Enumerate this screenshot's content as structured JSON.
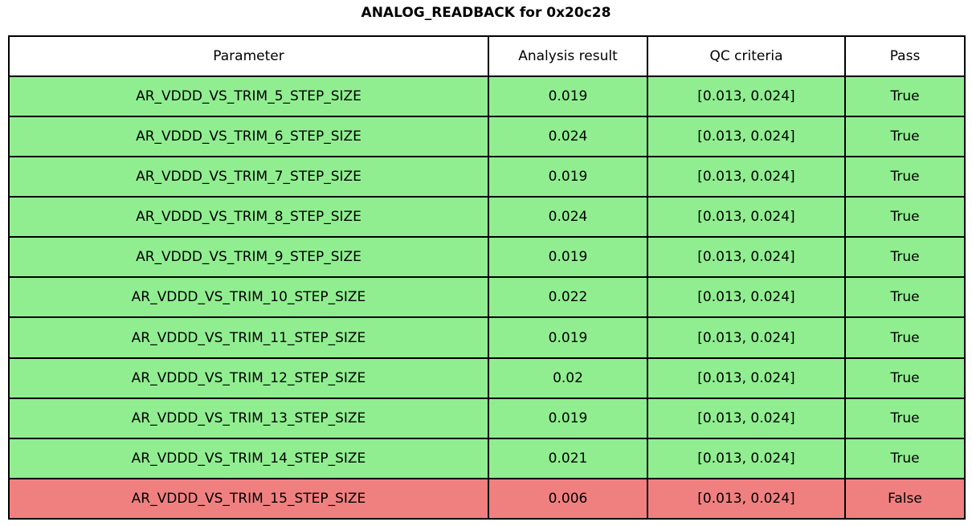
{
  "chart_data": {
    "type": "table",
    "title": "ANALOG_READBACK for 0x20c28",
    "columns": [
      "Parameter",
      "Analysis result",
      "QC criteria",
      "Pass"
    ],
    "rows": [
      {
        "parameter": "AR_VDDD_VS_TRIM_5_STEP_SIZE",
        "result": "0.019",
        "criteria": "[0.013, 0.024]",
        "pass": "True"
      },
      {
        "parameter": "AR_VDDD_VS_TRIM_6_STEP_SIZE",
        "result": "0.024",
        "criteria": "[0.013, 0.024]",
        "pass": "True"
      },
      {
        "parameter": "AR_VDDD_VS_TRIM_7_STEP_SIZE",
        "result": "0.019",
        "criteria": "[0.013, 0.024]",
        "pass": "True"
      },
      {
        "parameter": "AR_VDDD_VS_TRIM_8_STEP_SIZE",
        "result": "0.024",
        "criteria": "[0.013, 0.024]",
        "pass": "True"
      },
      {
        "parameter": "AR_VDDD_VS_TRIM_9_STEP_SIZE",
        "result": "0.019",
        "criteria": "[0.013, 0.024]",
        "pass": "True"
      },
      {
        "parameter": "AR_VDDD_VS_TRIM_10_STEP_SIZE",
        "result": "0.022",
        "criteria": "[0.013, 0.024]",
        "pass": "True"
      },
      {
        "parameter": "AR_VDDD_VS_TRIM_11_STEP_SIZE",
        "result": "0.019",
        "criteria": "[0.013, 0.024]",
        "pass": "True"
      },
      {
        "parameter": "AR_VDDD_VS_TRIM_12_STEP_SIZE",
        "result": "0.02",
        "criteria": "[0.013, 0.024]",
        "pass": "True"
      },
      {
        "parameter": "AR_VDDD_VS_TRIM_13_STEP_SIZE",
        "result": "0.019",
        "criteria": "[0.013, 0.024]",
        "pass": "True"
      },
      {
        "parameter": "AR_VDDD_VS_TRIM_14_STEP_SIZE",
        "result": "0.021",
        "criteria": "[0.013, 0.024]",
        "pass": "True"
      },
      {
        "parameter": "AR_VDDD_VS_TRIM_15_STEP_SIZE",
        "result": "0.006",
        "criteria": "[0.013, 0.024]",
        "pass": "False"
      }
    ]
  },
  "colors": {
    "pass_row_bg": "#90EE90",
    "fail_row_bg": "#F08080",
    "header_bg": "#FFFFFF",
    "border": "#000000",
    "text": "#000000"
  }
}
